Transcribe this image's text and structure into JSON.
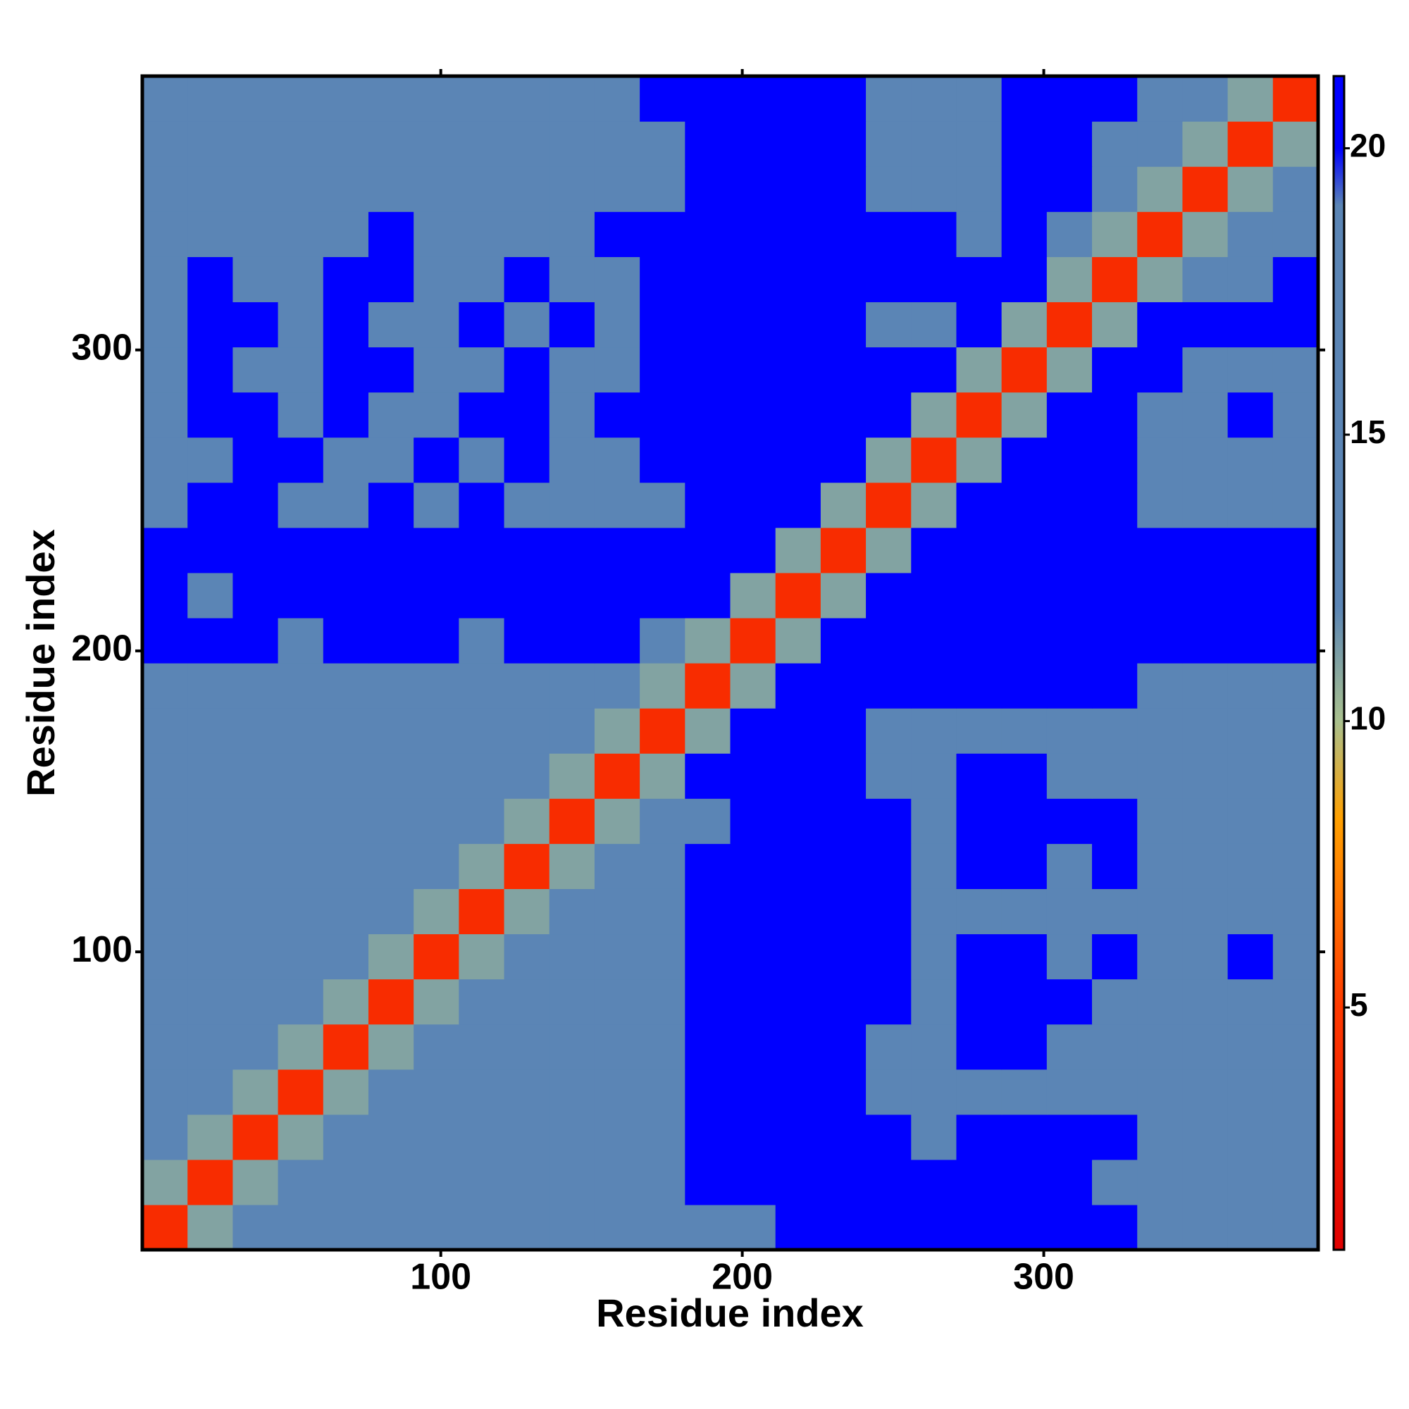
{
  "chart_data": {
    "type": "heatmap",
    "xlabel": "Residue index",
    "ylabel": "Residue index",
    "xlim": [
      1,
      391
    ],
    "ylim": [
      1,
      391
    ],
    "xticks": [
      100,
      200,
      300
    ],
    "yticks": [
      100,
      200,
      300
    ],
    "xbins": [
      1,
      16,
      31,
      46,
      61,
      76,
      91,
      106,
      121,
      136,
      151,
      166,
      181,
      196,
      211,
      226,
      241,
      256,
      271,
      286,
      301,
      316,
      331,
      346,
      361,
      376,
      391
    ],
    "ybins": [
      1,
      16,
      31,
      46,
      61,
      76,
      91,
      106,
      121,
      136,
      151,
      166,
      181,
      196,
      211,
      226,
      241,
      256,
      271,
      286,
      301,
      316,
      331,
      346,
      361,
      376,
      391
    ],
    "zlim": [
      0.77,
      21.26
    ],
    "zticks": [
      5,
      10,
      15,
      20
    ],
    "colorscale": [
      [
        0.77,
        "#e00000"
      ],
      [
        5,
        "#ff3a00"
      ],
      [
        8.3,
        "#ffa000"
      ],
      [
        10,
        "#a9c08e"
      ],
      [
        12,
        "#5b85b5"
      ],
      [
        19,
        "#5b85b5"
      ],
      [
        20,
        "#0000ff"
      ],
      [
        21.26,
        "#0000ff"
      ]
    ],
    "z": [
      [
        4,
        11,
        14,
        15,
        14,
        15,
        16,
        15,
        16,
        16,
        16,
        16,
        16,
        16,
        21,
        21,
        21,
        21,
        21,
        21,
        21,
        21,
        16,
        15,
        14,
        13
      ],
      [
        11,
        4,
        11,
        15,
        16,
        14,
        16,
        16,
        16,
        16,
        16,
        16,
        21,
        21,
        21,
        21,
        21,
        21,
        21,
        21,
        21,
        16,
        16,
        14,
        13,
        14
      ],
      [
        14,
        11,
        4,
        11,
        14,
        15,
        16,
        16,
        16,
        16,
        16,
        16,
        21,
        21,
        21,
        21,
        21,
        16,
        21,
        21,
        21,
        21,
        16,
        14,
        16,
        16
      ],
      [
        12,
        14,
        11,
        4,
        11,
        14,
        15,
        16,
        16,
        16,
        16,
        16,
        21,
        21,
        21,
        21,
        16,
        16,
        16,
        16,
        16,
        16,
        16,
        16,
        16,
        16
      ],
      [
        12,
        13,
        14,
        11,
        4,
        11,
        14,
        15,
        13,
        16,
        16,
        16,
        21,
        21,
        21,
        21,
        16,
        16,
        21,
        21,
        16,
        16,
        16,
        16,
        16,
        14
      ],
      [
        16,
        15,
        15,
        14,
        11,
        4,
        11,
        13,
        14,
        16,
        16,
        16,
        21,
        21,
        21,
        21,
        21,
        16,
        21,
        21,
        21,
        16,
        16,
        16,
        16,
        16
      ],
      [
        15,
        16,
        16,
        14,
        13,
        11,
        4,
        11,
        14,
        15,
        16,
        16,
        21,
        21,
        21,
        21,
        21,
        16,
        21,
        21,
        16,
        21,
        16,
        16,
        21,
        16
      ],
      [
        14,
        16,
        16,
        16,
        14,
        13,
        11,
        4,
        11,
        14,
        13,
        12,
        21,
        21,
        21,
        21,
        21,
        16,
        16,
        16,
        16,
        16,
        16,
        16,
        16,
        14
      ],
      [
        16,
        16,
        15,
        16,
        13,
        15,
        14,
        11,
        4,
        11,
        14,
        15,
        21,
        21,
        21,
        21,
        21,
        16,
        21,
        21,
        16,
        21,
        16,
        16,
        16,
        16
      ],
      [
        16,
        16,
        16,
        16,
        15,
        14,
        15,
        14,
        11,
        4,
        11,
        13,
        16,
        21,
        21,
        21,
        21,
        16,
        21,
        21,
        21,
        21,
        16,
        16,
        16,
        16
      ],
      [
        16,
        16,
        16,
        16,
        16,
        16,
        15,
        14,
        13,
        11,
        4,
        11,
        21,
        21,
        21,
        21,
        13,
        16,
        21,
        21,
        16,
        16,
        16,
        13,
        16,
        14
      ],
      [
        16,
        16,
        16,
        16,
        16,
        16,
        16,
        13,
        14,
        13,
        11,
        4,
        11,
        21,
        21,
        21,
        16,
        16,
        16,
        16,
        16,
        16,
        16,
        16,
        16,
        14
      ],
      [
        16,
        16,
        16,
        16,
        16,
        16,
        16,
        16,
        16,
        16,
        16,
        11,
        4,
        11,
        21,
        21,
        21,
        21,
        21,
        21,
        21,
        21,
        16,
        16,
        16,
        16
      ],
      [
        21,
        21,
        21,
        16,
        21,
        21,
        21,
        16,
        21,
        21,
        21,
        16,
        11,
        4,
        11,
        21,
        21,
        21,
        21,
        21,
        21,
        21,
        21,
        21,
        21,
        21
      ],
      [
        21,
        16,
        21,
        21,
        21,
        21,
        21,
        21,
        21,
        21,
        21,
        21,
        21,
        11,
        4,
        11,
        21,
        21,
        21,
        21,
        21,
        21,
        21,
        21,
        21,
        21
      ],
      [
        21,
        21,
        21,
        21,
        21,
        21,
        21,
        21,
        21,
        21,
        21,
        21,
        21,
        21,
        11,
        4,
        11,
        21,
        21,
        21,
        21,
        21,
        21,
        21,
        21,
        21
      ],
      [
        16,
        21,
        21,
        16,
        16,
        21,
        16,
        21,
        16,
        16,
        13,
        16,
        21,
        21,
        21,
        11,
        4,
        11,
        21,
        21,
        21,
        21,
        16,
        16,
        16,
        16
      ],
      [
        16,
        16,
        21,
        21,
        16,
        16,
        21,
        16,
        21,
        16,
        16,
        21,
        21,
        21,
        21,
        21,
        11,
        4,
        11,
        21,
        21,
        21,
        16,
        13,
        16,
        16
      ],
      [
        16,
        21,
        21,
        16,
        21,
        16,
        16,
        21,
        21,
        16,
        21,
        21,
        21,
        21,
        21,
        21,
        21,
        11,
        4,
        11,
        21,
        21,
        16,
        16,
        21,
        16
      ],
      [
        16,
        21,
        16,
        16,
        21,
        21,
        16,
        16,
        21,
        16,
        16,
        21,
        21,
        21,
        21,
        21,
        21,
        21,
        11,
        4,
        11,
        21,
        21,
        16,
        16,
        16
      ],
      [
        16,
        21,
        21,
        16,
        21,
        16,
        16,
        21,
        16,
        21,
        16,
        21,
        21,
        21,
        21,
        21,
        16,
        16,
        21,
        11,
        4,
        11,
        21,
        21,
        21,
        21
      ],
      [
        16,
        21,
        16,
        16,
        21,
        21,
        16,
        16,
        21,
        16,
        16,
        21,
        21,
        21,
        21,
        21,
        21,
        21,
        21,
        21,
        11,
        4,
        11,
        16,
        16,
        21
      ],
      [
        16,
        16,
        16,
        16,
        16,
        21,
        16,
        16,
        16,
        16,
        21,
        21,
        21,
        21,
        21,
        21,
        21,
        21,
        16,
        21,
        16,
        11,
        4,
        11,
        16,
        16
      ],
      [
        16,
        13,
        13,
        16,
        16,
        16,
        16,
        16,
        16,
        16,
        13,
        16,
        21,
        21,
        21,
        21,
        16,
        14,
        16,
        21,
        21,
        16,
        11,
        4,
        11,
        14
      ],
      [
        15,
        12,
        16,
        14,
        16,
        16,
        16,
        16,
        16,
        16,
        16,
        16,
        21,
        21,
        21,
        21,
        16,
        13,
        16,
        21,
        21,
        16,
        16,
        11,
        4,
        11
      ],
      [
        13,
        13,
        15,
        16,
        16,
        16,
        16,
        16,
        16,
        16,
        16,
        21,
        21,
        21,
        21,
        21,
        16,
        16,
        16,
        21,
        21,
        21,
        16,
        14,
        11,
        4
      ]
    ]
  }
}
